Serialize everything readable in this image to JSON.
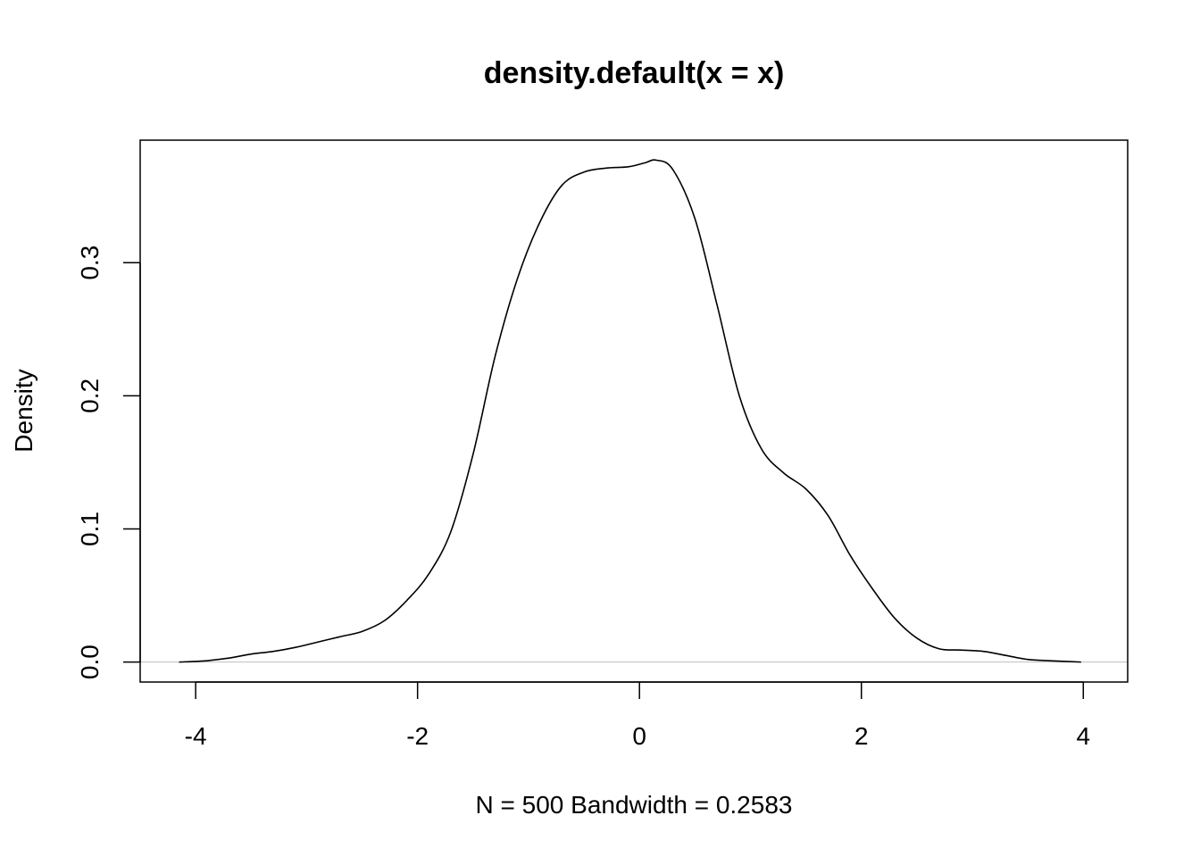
{
  "chart_data": {
    "type": "line",
    "title": "density.default(x = x)",
    "xlabel": "N = 500   Bandwidth = 0.2583",
    "ylabel": "Density",
    "xlim": [
      -4.5,
      4.4
    ],
    "ylim": [
      -0.015,
      0.392
    ],
    "x_ticks": [
      -4,
      -2,
      0,
      2,
      4
    ],
    "x_tick_labels": [
      "-4",
      "-2",
      "0",
      "2",
      "4"
    ],
    "y_ticks": [
      0.0,
      0.1,
      0.2,
      0.3
    ],
    "y_tick_labels": [
      "0.0",
      "0.1",
      "0.2",
      "0.3"
    ],
    "grid": false,
    "zero_line": true,
    "colors": {
      "line": "#000000",
      "zero_line": "#bebebe",
      "frame": "#000000"
    },
    "series": [
      {
        "x": [
          -4.15,
          -3.9,
          -3.7,
          -3.5,
          -3.3,
          -3.1,
          -2.9,
          -2.7,
          -2.5,
          -2.3,
          -2.1,
          -1.9,
          -1.7,
          -1.5,
          -1.3,
          -1.1,
          -0.9,
          -0.7,
          -0.5,
          -0.3,
          -0.1,
          0.05,
          0.15,
          0.3,
          0.5,
          0.7,
          0.9,
          1.1,
          1.3,
          1.5,
          1.7,
          1.9,
          2.1,
          2.3,
          2.5,
          2.7,
          2.9,
          3.1,
          3.3,
          3.5,
          3.7,
          3.98
        ],
        "y": [
          0.0,
          0.001,
          0.003,
          0.006,
          0.008,
          0.011,
          0.015,
          0.019,
          0.023,
          0.031,
          0.046,
          0.066,
          0.098,
          0.156,
          0.23,
          0.288,
          0.33,
          0.358,
          0.368,
          0.371,
          0.372,
          0.375,
          0.377,
          0.37,
          0.333,
          0.268,
          0.2,
          0.16,
          0.142,
          0.13,
          0.11,
          0.08,
          0.055,
          0.033,
          0.018,
          0.01,
          0.009,
          0.008,
          0.005,
          0.002,
          0.001,
          0.0
        ]
      }
    ]
  }
}
